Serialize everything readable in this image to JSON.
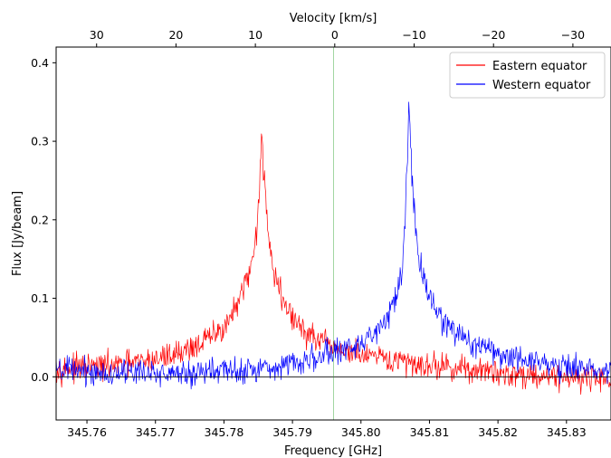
{
  "chart_data": {
    "type": "line",
    "xlabel": "Frequency [GHz]",
    "ylabel": "Flux [Jy/beam]",
    "x2label": "Velocity [km/s]",
    "xlim": [
      345.7555,
      345.8365
    ],
    "ylim": [
      -0.055,
      0.42
    ],
    "x2lim": [
      35.1,
      -34.8
    ],
    "grid": false,
    "legend_position": "top-right",
    "xticks": [
      345.76,
      345.77,
      345.78,
      345.79,
      345.8,
      345.81,
      345.82,
      345.83
    ],
    "xtick_labels": [
      "345.76",
      "345.77",
      "345.78",
      "345.79",
      "345.80",
      "345.81",
      "345.82",
      "345.83"
    ],
    "yticks": [
      0.0,
      0.1,
      0.2,
      0.3,
      0.4
    ],
    "ytick_labels": [
      "0.0",
      "0.1",
      "0.2",
      "0.3",
      "0.4"
    ],
    "x2ticks": [
      30,
      20,
      10,
      0,
      -10,
      -20,
      -30
    ],
    "x2tick_labels": [
      "30",
      "20",
      "10",
      "0",
      "−10",
      "−20",
      "−30"
    ],
    "reference_lines": {
      "zero_flux": {
        "y": 0.0,
        "color": "#000000"
      },
      "zero_velocity": {
        "x": 345.796,
        "color": "#2ca02c"
      }
    },
    "series": [
      {
        "name": "Eastern equator",
        "color": "#ff0000",
        "noise_amplitude": 0.008,
        "points": [
          [
            345.7555,
            0.01
          ],
          [
            345.76,
            0.012
          ],
          [
            345.765,
            0.015
          ],
          [
            345.77,
            0.022
          ],
          [
            345.773,
            0.03
          ],
          [
            345.776,
            0.04
          ],
          [
            345.779,
            0.055
          ],
          [
            345.781,
            0.075
          ],
          [
            345.7825,
            0.1
          ],
          [
            345.7838,
            0.135
          ],
          [
            345.7846,
            0.175
          ],
          [
            345.7851,
            0.23
          ],
          [
            345.7855,
            0.295
          ],
          [
            345.7859,
            0.26
          ],
          [
            345.7864,
            0.19
          ],
          [
            345.7872,
            0.135
          ],
          [
            345.7885,
            0.1
          ],
          [
            345.79,
            0.075
          ],
          [
            345.792,
            0.055
          ],
          [
            345.795,
            0.04
          ],
          [
            345.798,
            0.032
          ],
          [
            345.801,
            0.025
          ],
          [
            345.805,
            0.02
          ],
          [
            345.81,
            0.015
          ],
          [
            345.815,
            0.01
          ],
          [
            345.82,
            0.005
          ],
          [
            345.825,
            0.002
          ],
          [
            345.83,
            0.0
          ],
          [
            345.8365,
            -0.002
          ]
        ]
      },
      {
        "name": "Western equator",
        "color": "#0000ff",
        "noise_amplitude": 0.008,
        "points": [
          [
            345.7555,
            0.008
          ],
          [
            345.765,
            0.005
          ],
          [
            345.775,
            0.005
          ],
          [
            345.785,
            0.01
          ],
          [
            345.79,
            0.018
          ],
          [
            345.795,
            0.028
          ],
          [
            345.799,
            0.04
          ],
          [
            345.802,
            0.055
          ],
          [
            345.804,
            0.075
          ],
          [
            345.8052,
            0.1
          ],
          [
            345.806,
            0.14
          ],
          [
            345.8065,
            0.2
          ],
          [
            345.807,
            0.34
          ],
          [
            345.8075,
            0.25
          ],
          [
            345.8082,
            0.16
          ],
          [
            345.8095,
            0.11
          ],
          [
            345.811,
            0.08
          ],
          [
            345.813,
            0.06
          ],
          [
            345.816,
            0.045
          ],
          [
            345.82,
            0.03
          ],
          [
            345.825,
            0.02
          ],
          [
            345.83,
            0.012
          ],
          [
            345.8365,
            0.01
          ]
        ]
      }
    ]
  }
}
